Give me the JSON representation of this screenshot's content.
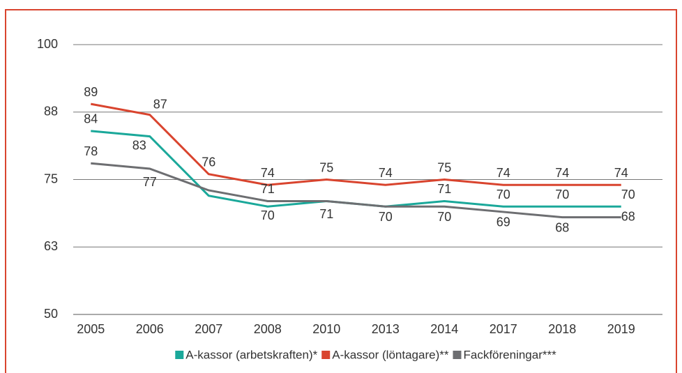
{
  "chart_data": {
    "type": "line",
    "categories": [
      "2005",
      "2006",
      "2007",
      "2008",
      "2010",
      "2013",
      "2014",
      "2017",
      "2018",
      "2019"
    ],
    "series": [
      {
        "name": "A-kassor (arbetskraften)*",
        "color": "#1aa89a",
        "values": [
          84,
          83,
          72,
          70,
          71,
          70,
          71,
          70,
          70,
          70
        ],
        "value_labels": [
          "84",
          "83",
          null,
          "70",
          null,
          null,
          "71",
          "70",
          "70",
          "70"
        ]
      },
      {
        "name": "A-kassor (löntagare)**",
        "color": "#d9442e",
        "values": [
          89,
          87,
          76,
          74,
          75,
          74,
          75,
          74,
          74,
          74
        ],
        "value_labels": [
          "89",
          "87",
          "76",
          "74",
          "75",
          "74",
          "75",
          "74",
          "74",
          "74"
        ]
      },
      {
        "name": "Fackföreningar***",
        "color": "#6d6e71",
        "values": [
          78,
          77,
          73,
          71,
          71,
          70,
          70,
          69,
          68,
          68
        ],
        "value_labels": [
          "78",
          "77",
          null,
          "71",
          "71",
          "70",
          "70",
          "69",
          "68",
          "68"
        ]
      }
    ],
    "ylim": [
      50,
      100
    ],
    "yticks": [
      50,
      {
        "value": 62.5,
        "label": "63"
      },
      75,
      {
        "value": 87.5,
        "label": "88"
      },
      100
    ],
    "grid": true,
    "legend": "bottom"
  }
}
